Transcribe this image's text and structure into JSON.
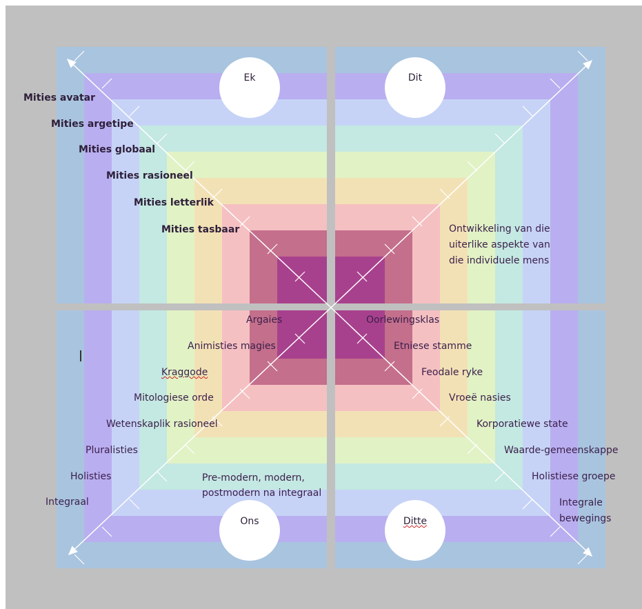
{
  "quadrants": {
    "top_left": "Ek",
    "top_right": "Dit",
    "bottom_left": "Ons",
    "bottom_right": "Ditte"
  },
  "myth_labels": [
    "Mities avatar",
    "Mities argetipe",
    "Mities globaal",
    "Mities rasioneel",
    "Mities letterlik",
    "Mities tasbaar"
  ],
  "top_right_note": [
    "Ontwikkeling van die",
    "uiterlike aspekte van",
    "die individuele mens"
  ],
  "bottom_left_labels": [
    "Argaies",
    "Animisties magies",
    "Kraggode",
    "Mitologiese orde",
    "Wetenskaplik rasioneel",
    "Pluralisties",
    "Holisties",
    "Integraal"
  ],
  "bottom_left_note": [
    "Pre-modern, modern,",
    "postmodern na integraal"
  ],
  "bottom_right_labels": [
    "Oorlewingsklas",
    "Etniese stamme",
    "Feodale ryke",
    "Vroeë nasies",
    "Korporatiewe state",
    "Waarde-gemeenskappe",
    "Holistiese groepe"
  ],
  "bottom_right_last": [
    "Integrale",
    "bewegings"
  ],
  "band_colors": [
    "#a9c4df",
    "#b9aef0",
    "#c6d3f6",
    "#c4e8e2",
    "#e1f2c5",
    "#f3e1b6",
    "#f5c0c2",
    "#c46f8c",
    "#a8418d"
  ]
}
